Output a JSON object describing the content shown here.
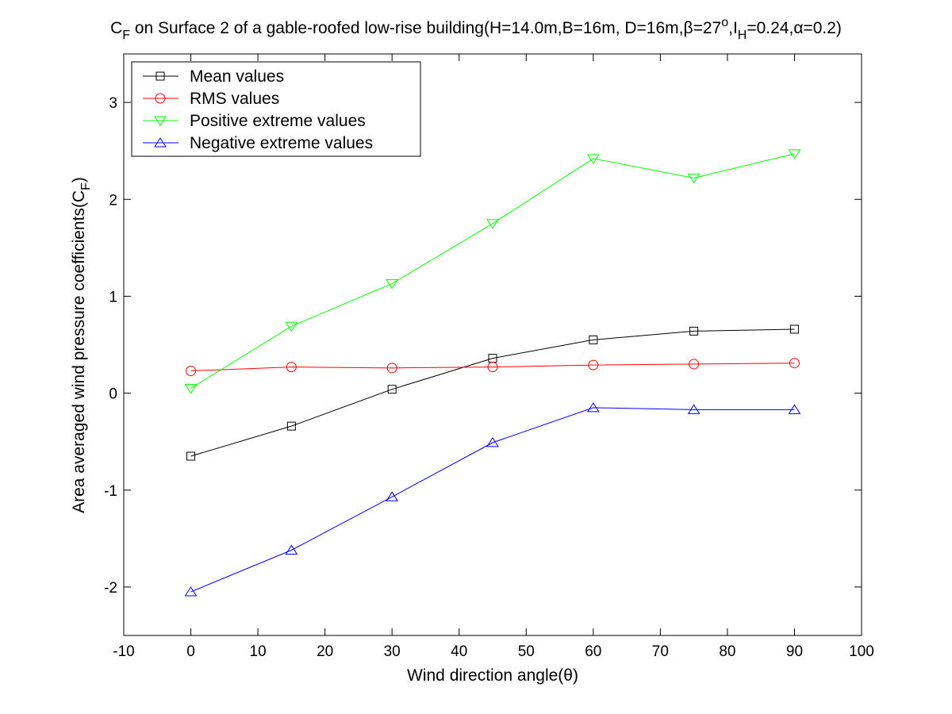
{
  "chart_data": {
    "type": "line",
    "title": {
      "prefix": "C",
      "prefix_sub": "F",
      "main": " on Surface 2 of a gable-roofed low-rise building(H=14.0m,B=16m, D=16m,",
      "beta_symbol": "β",
      "beta_value": "=27",
      "degree": "o",
      "comma": ",I",
      "ih_sub": "H",
      "ih_value": "=0.24,",
      "alpha_symbol": "α",
      "alpha_value": "=0.2)"
    },
    "xlabel": {
      "text": "Wind direction angle(",
      "theta": "θ",
      "close": ")"
    },
    "ylabel": {
      "text": "Area averaged wind pressure coefficients(C",
      "sub": "F",
      "close": ")"
    },
    "xlim": [
      -10,
      100
    ],
    "ylim": [
      -2.5,
      3.5
    ],
    "x_ticks": [
      -10,
      0,
      10,
      20,
      30,
      40,
      50,
      60,
      70,
      80,
      90,
      100
    ],
    "y_ticks": [
      -2,
      -1,
      0,
      1,
      2,
      3
    ],
    "x_tick_labels": [
      "-10",
      "0",
      "10",
      "20",
      "30",
      "40",
      "50",
      "60",
      "70",
      "80",
      "90",
      "100"
    ],
    "y_tick_labels": [
      "-2",
      "-1",
      "0",
      "1",
      "2",
      "3"
    ],
    "grid": false,
    "legend_position": "top-left",
    "x": [
      0,
      15,
      30,
      45,
      60,
      75,
      90
    ],
    "series": [
      {
        "name": "Mean values",
        "color": "#000000",
        "marker": "square",
        "values": [
          -0.65,
          -0.34,
          0.04,
          0.36,
          0.55,
          0.64,
          0.66
        ]
      },
      {
        "name": "RMS values",
        "color": "#ff0000",
        "marker": "circle",
        "values": [
          0.23,
          0.27,
          0.26,
          0.27,
          0.29,
          0.3,
          0.31
        ]
      },
      {
        "name": "Positive extreme values",
        "color": "#00ff00",
        "marker": "triangle-down",
        "values": [
          0.05,
          0.69,
          1.13,
          1.75,
          2.42,
          2.22,
          2.47
        ]
      },
      {
        "name": "Negative extreme values",
        "color": "#0000ff",
        "marker": "triangle-up",
        "values": [
          -2.05,
          -1.62,
          -1.07,
          -0.51,
          -0.15,
          -0.17,
          -0.17
        ]
      }
    ]
  }
}
